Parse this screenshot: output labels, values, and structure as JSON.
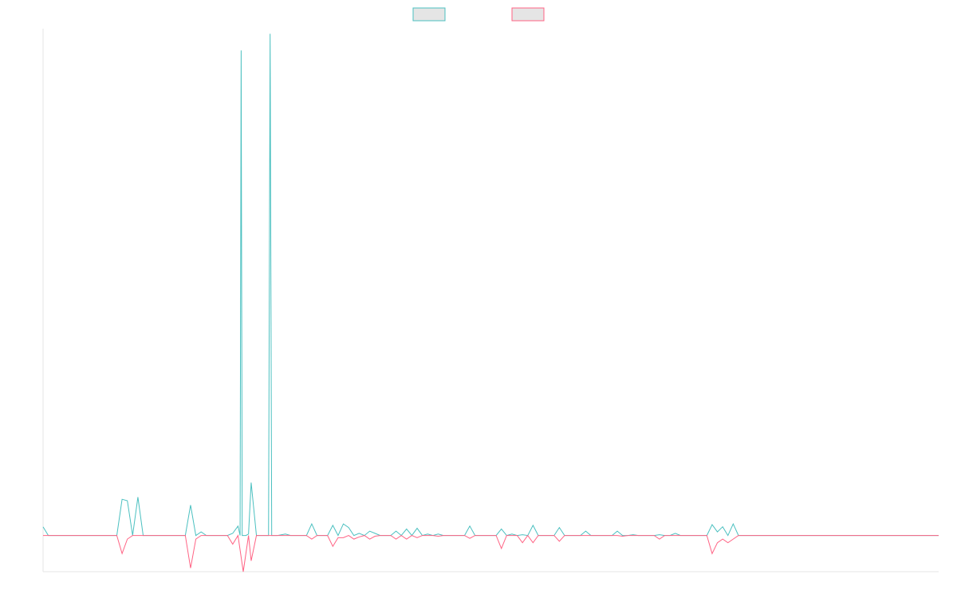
{
  "chart_data": {
    "type": "line",
    "title": "",
    "xlabel": "",
    "ylabel": "",
    "x_count": 170,
    "ylim": [
      -50,
      700
    ],
    "grid": false,
    "legend_position": "top-center",
    "series": [
      {
        "name": "",
        "color": "#4bc0c0",
        "fill": "#e5e5e5",
        "points": [
          [
            0,
            12
          ],
          [
            1,
            0
          ],
          [
            14,
            0
          ],
          [
            15,
            50
          ],
          [
            16,
            48
          ],
          [
            17,
            0
          ],
          [
            18,
            53
          ],
          [
            19,
            0
          ],
          [
            27,
            0
          ],
          [
            28,
            42
          ],
          [
            29,
            0
          ],
          [
            30,
            5
          ],
          [
            31,
            0
          ],
          [
            35,
            0
          ],
          [
            36,
            3
          ],
          [
            37,
            13
          ],
          [
            38,
            0
          ],
          [
            39,
            2
          ],
          [
            37.4,
            0
          ],
          [
            37.6,
            670
          ],
          [
            37.8,
            0
          ],
          [
            38.5,
            0
          ],
          [
            39.5,
            73
          ],
          [
            40.5,
            0
          ],
          [
            42.5,
            0
          ],
          [
            42.8,
            0
          ],
          [
            43.1,
            693
          ],
          [
            43.4,
            0
          ],
          [
            44.5,
            0
          ],
          [
            46,
            2
          ],
          [
            47,
            0
          ],
          [
            50,
            0
          ],
          [
            51,
            16
          ],
          [
            52,
            0
          ],
          [
            54,
            0
          ],
          [
            55,
            14
          ],
          [
            56,
            0
          ],
          [
            57,
            16
          ],
          [
            58,
            11
          ],
          [
            59,
            0
          ],
          [
            60,
            3
          ],
          [
            61,
            0
          ],
          [
            62,
            6
          ],
          [
            63,
            3
          ],
          [
            64,
            0
          ],
          [
            66,
            0
          ],
          [
            67,
            6
          ],
          [
            68,
            0
          ],
          [
            69,
            9
          ],
          [
            70,
            0
          ],
          [
            71,
            10
          ],
          [
            72,
            0
          ],
          [
            73,
            2
          ],
          [
            74,
            0
          ],
          [
            75,
            2
          ],
          [
            76,
            0
          ],
          [
            77,
            0
          ],
          [
            78,
            0
          ],
          [
            79,
            0
          ],
          [
            80,
            0
          ],
          [
            81,
            13
          ],
          [
            82,
            0
          ],
          [
            86,
            0
          ],
          [
            87,
            9
          ],
          [
            88,
            0
          ],
          [
            89,
            2
          ],
          [
            90,
            0
          ],
          [
            91,
            1
          ],
          [
            92,
            0
          ],
          [
            93,
            14
          ],
          [
            94,
            0
          ],
          [
            97,
            0
          ],
          [
            98,
            11
          ],
          [
            99,
            0
          ],
          [
            102,
            0
          ],
          [
            103,
            6
          ],
          [
            104,
            0
          ],
          [
            108,
            0
          ],
          [
            109,
            6
          ],
          [
            110,
            0
          ],
          [
            111,
            0
          ],
          [
            112,
            1
          ],
          [
            113,
            0
          ],
          [
            116,
            0
          ],
          [
            117,
            1
          ],
          [
            118,
            0
          ],
          [
            119,
            0
          ],
          [
            120,
            3
          ],
          [
            121,
            0
          ],
          [
            126,
            0
          ],
          [
            127,
            15
          ],
          [
            128,
            5
          ],
          [
            129,
            12
          ],
          [
            130,
            0
          ],
          [
            131,
            16
          ],
          [
            132,
            0
          ],
          [
            170,
            0
          ]
        ]
      },
      {
        "name": "",
        "color": "#ff6384",
        "fill": "#e5e5e5",
        "points": [
          [
            0,
            0
          ],
          [
            14,
            0
          ],
          [
            15,
            -25
          ],
          [
            16,
            -5
          ],
          [
            17,
            0
          ],
          [
            27,
            0
          ],
          [
            28,
            -45
          ],
          [
            29,
            -5
          ],
          [
            30,
            0
          ],
          [
            35,
            0
          ],
          [
            36,
            -12
          ],
          [
            37,
            0
          ],
          [
            38,
            -50
          ],
          [
            39,
            0
          ],
          [
            39.5,
            -35
          ],
          [
            40.5,
            0
          ],
          [
            50,
            0
          ],
          [
            51,
            -5
          ],
          [
            52,
            0
          ],
          [
            54,
            0
          ],
          [
            55,
            -15
          ],
          [
            56,
            -3
          ],
          [
            57,
            -3
          ],
          [
            58,
            0
          ],
          [
            59,
            -5
          ],
          [
            60,
            -2
          ],
          [
            61,
            0
          ],
          [
            62,
            -5
          ],
          [
            63,
            -1
          ],
          [
            64,
            0
          ],
          [
            66,
            0
          ],
          [
            67,
            -5
          ],
          [
            68,
            0
          ],
          [
            69,
            -5
          ],
          [
            70,
            0
          ],
          [
            71,
            -3
          ],
          [
            72,
            0
          ],
          [
            74,
            0
          ],
          [
            75,
            -1
          ],
          [
            76,
            0
          ],
          [
            80,
            0
          ],
          [
            81,
            -4
          ],
          [
            82,
            0
          ],
          [
            86,
            0
          ],
          [
            87,
            -18
          ],
          [
            88,
            0
          ],
          [
            90,
            0
          ],
          [
            91,
            -10
          ],
          [
            92,
            0
          ],
          [
            93,
            -10
          ],
          [
            94,
            0
          ],
          [
            97,
            0
          ],
          [
            98,
            -8
          ],
          [
            99,
            0
          ],
          [
            109,
            0
          ],
          [
            110,
            -1
          ],
          [
            111,
            0
          ],
          [
            116,
            0
          ],
          [
            117,
            -5
          ],
          [
            118,
            0
          ],
          [
            126,
            0
          ],
          [
            127,
            -25
          ],
          [
            128,
            -10
          ],
          [
            129,
            -5
          ],
          [
            130,
            -10
          ],
          [
            131,
            -5
          ],
          [
            132,
            0
          ],
          [
            170,
            0
          ]
        ]
      }
    ]
  }
}
